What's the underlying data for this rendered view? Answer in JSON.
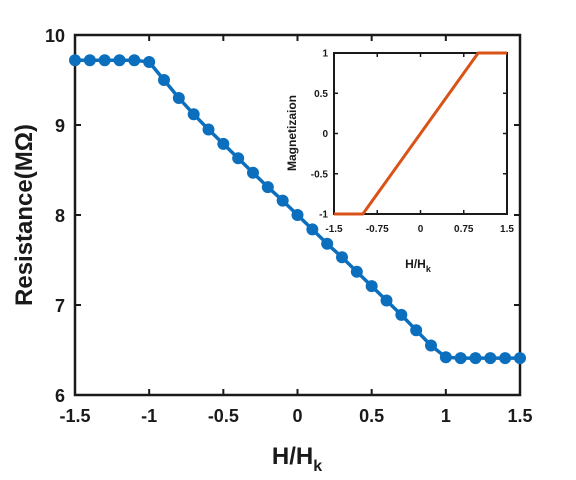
{
  "chart_data": [
    {
      "id": "main",
      "type": "line",
      "xlabel": "H/H",
      "xlabel_sub": "k",
      "ylabel": "Resistance(MΩ)",
      "xlim": [
        -1.5,
        1.5
      ],
      "ylim": [
        6,
        10
      ],
      "xticks": [
        "-1.5",
        "-1",
        "-0.5",
        "0",
        "0.5",
        "1",
        "1.5"
      ],
      "xtick_values": [
        -1.5,
        -1,
        -0.5,
        0,
        0.5,
        1,
        1.5
      ],
      "yticks": [
        "6",
        "7",
        "8",
        "9",
        "10"
      ],
      "ytick_values": [
        6,
        7,
        8,
        9,
        10
      ],
      "grid": false,
      "series": [
        {
          "color": "#0b6fbd",
          "marker": "circle",
          "x": [
            -1.5,
            -1.4,
            -1.3,
            -1.2,
            -1.1,
            -1.0,
            -0.9,
            -0.8,
            -0.7,
            -0.6,
            -0.5,
            -0.4,
            -0.3,
            -0.2,
            -0.1,
            0.0,
            0.1,
            0.2,
            0.3,
            0.4,
            0.5,
            0.6,
            0.7,
            0.8,
            0.9,
            1.0,
            1.1,
            1.2,
            1.3,
            1.4,
            1.5
          ],
          "y": [
            9.72,
            9.72,
            9.72,
            9.72,
            9.72,
            9.7,
            9.5,
            9.3,
            9.12,
            8.95,
            8.79,
            8.63,
            8.47,
            8.31,
            8.16,
            8.0,
            7.84,
            7.68,
            7.53,
            7.37,
            7.21,
            7.05,
            6.89,
            6.72,
            6.55,
            6.42,
            6.41,
            6.41,
            6.41,
            6.41,
            6.41
          ]
        }
      ]
    },
    {
      "id": "inset",
      "type": "line",
      "xlabel": "H/H",
      "xlabel_sub": "k",
      "ylabel": "Magnetizaion",
      "xlim": [
        -1.5,
        1.5
      ],
      "ylim": [
        -1,
        1
      ],
      "xticks": [
        "-1.5",
        "-0.75",
        "0",
        "0.75",
        "1.5"
      ],
      "xtick_values": [
        -1.5,
        -0.75,
        0,
        0.75,
        1.5
      ],
      "yticks": [
        "-1",
        "-0.5",
        "0",
        "0.5",
        "1"
      ],
      "ytick_values": [
        -1,
        -0.5,
        0,
        0.5,
        1
      ],
      "grid": false,
      "series": [
        {
          "color": "#d95319",
          "marker": "none",
          "x": [
            -1.5,
            -1.0,
            1.0,
            1.5
          ],
          "y": [
            -1,
            -1,
            1,
            1
          ]
        }
      ]
    }
  ]
}
